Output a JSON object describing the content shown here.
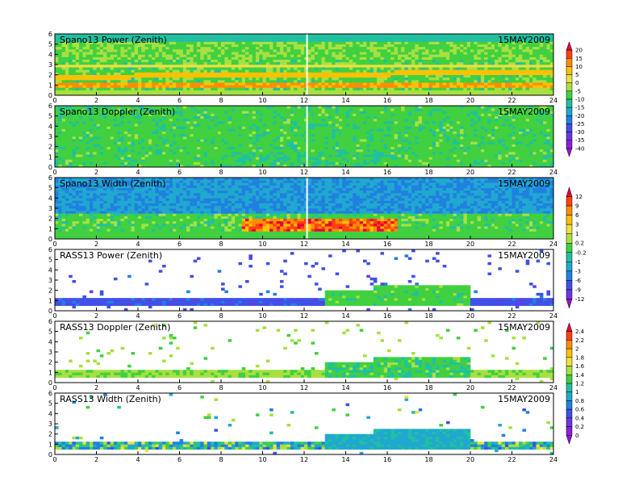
{
  "chart_data": [
    {
      "type": "heatmap",
      "title": "Spano13 Power (Zenith)",
      "date_label": "15MAY2009",
      "x_ticks": [
        "0",
        "2",
        "4",
        "6",
        "8",
        "10",
        "12",
        "14",
        "16",
        "18",
        "20",
        "22",
        "24"
      ],
      "y_ticks": [
        "0",
        "1",
        "2",
        "3",
        "4",
        "5",
        "6"
      ],
      "xlim": [
        0,
        24
      ],
      "ylim": [
        0,
        6
      ],
      "colorbar": "power"
    },
    {
      "type": "heatmap",
      "title": "Spano13 Doppler (Zenith)",
      "date_label": "15MAY2009",
      "x_ticks": [
        "0",
        "2",
        "4",
        "6",
        "8",
        "10",
        "12",
        "14",
        "16",
        "18",
        "20",
        "22",
        "24"
      ],
      "y_ticks": [
        "0",
        "1",
        "2",
        "3",
        "4",
        "5",
        "6"
      ],
      "xlim": [
        0,
        24
      ],
      "ylim": [
        0,
        6
      ],
      "colorbar": "power"
    },
    {
      "type": "heatmap",
      "title": "Spano13 Width (Zenith)",
      "date_label": "15MAY2009",
      "x_ticks": [
        "0",
        "2",
        "4",
        "6",
        "8",
        "10",
        "12",
        "14",
        "16",
        "18",
        "20",
        "22",
        "24"
      ],
      "y_ticks": [
        "0",
        "1",
        "2",
        "3",
        "4",
        "5",
        "6"
      ],
      "xlim": [
        0,
        24
      ],
      "ylim": [
        0,
        6
      ],
      "colorbar": "width"
    },
    {
      "type": "heatmap",
      "title": "RASS13 Power (Zenith)",
      "date_label": "15MAY2009",
      "x_ticks": [
        "0",
        "2",
        "4",
        "6",
        "8",
        "10",
        "12",
        "14",
        "16",
        "18",
        "20",
        "22",
        "24"
      ],
      "y_ticks": [
        "0",
        "1",
        "2",
        "3",
        "4",
        "5",
        "6"
      ],
      "xlim": [
        0,
        24
      ],
      "ylim": [
        0,
        6
      ],
      "colorbar": "width"
    },
    {
      "type": "heatmap",
      "title": "RASS13 Doppler (Zenith)",
      "date_label": "15MAY2009",
      "x_ticks": [
        "0",
        "2",
        "4",
        "6",
        "8",
        "10",
        "12",
        "14",
        "16",
        "18",
        "20",
        "22",
        "24"
      ],
      "y_ticks": [
        "0",
        "1",
        "2",
        "3",
        "4",
        "5",
        "6"
      ],
      "xlim": [
        0,
        24
      ],
      "ylim": [
        0,
        6
      ],
      "colorbar": "doppler"
    },
    {
      "type": "heatmap",
      "title": "RASS13 Width (Zenith)",
      "date_label": "15MAY2009",
      "x_ticks": [
        "0",
        "2",
        "4",
        "6",
        "8",
        "10",
        "12",
        "14",
        "16",
        "18",
        "20",
        "22",
        "24"
      ],
      "y_ticks": [
        "0",
        "1",
        "2",
        "3",
        "4",
        "5",
        "6"
      ],
      "xlim": [
        0,
        24
      ],
      "ylim": [
        0,
        6
      ],
      "colorbar": "doppler"
    }
  ],
  "colorbars": {
    "power": {
      "labels": [
        "20",
        "15",
        "10",
        "5",
        "0",
        "-5",
        "-10",
        "-15",
        "-20",
        "-25",
        "-30",
        "-35",
        "-40"
      ],
      "colors": [
        "#e8003c",
        "#ff4010",
        "#ff8c00",
        "#ffc000",
        "#f0e040",
        "#a8e040",
        "#40d040",
        "#20c0a0",
        "#20a8d0",
        "#2080e0",
        "#4050e8",
        "#6a38e0",
        "#8a20d8",
        "#9a10d0"
      ]
    },
    "width": {
      "labels": [
        "12",
        "9",
        "6",
        "3",
        "1",
        "0.2",
        "-0.2",
        "-1",
        "-3",
        "-6",
        "-9",
        "-12"
      ],
      "colors": [
        "#e8003c",
        "#ff4010",
        "#ff8c00",
        "#ffc000",
        "#f0e040",
        "#a8e040",
        "#40d040",
        "#20c0a0",
        "#20a8d0",
        "#2080e0",
        "#4050e8",
        "#6a38e0",
        "#9a10d0"
      ]
    },
    "doppler": {
      "labels": [
        "2.4",
        "2.2",
        "2",
        "1.8",
        "1.6",
        "1.4",
        "1.2",
        "1",
        "0.8",
        "0.6",
        "0.4",
        "0.2",
        "0"
      ],
      "colors": [
        "#e8003c",
        "#ff4010",
        "#ff8c00",
        "#ffc000",
        "#f0e040",
        "#a8e040",
        "#40d040",
        "#20c0a0",
        "#20a8d0",
        "#2080e0",
        "#4050e8",
        "#6a38e0",
        "#8a20d8",
        "#9a10d0"
      ]
    }
  }
}
